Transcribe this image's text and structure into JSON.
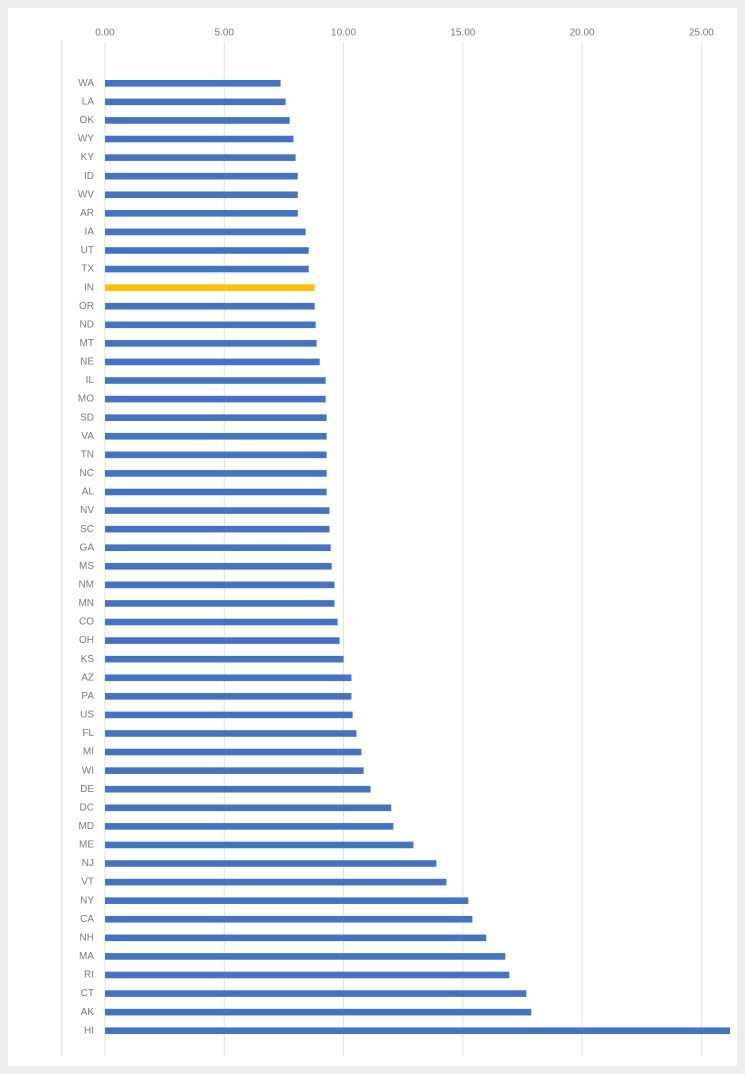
{
  "chart_data": {
    "type": "barh",
    "categories": [
      "WA",
      "LA",
      "OK",
      "WY",
      "KY",
      "ID",
      "WV",
      "AR",
      "IA",
      "UT",
      "TX",
      "IN",
      "OR",
      "ND",
      "MT",
      "NE",
      "IL",
      "MO",
      "SD",
      "VA",
      "TN",
      "NC",
      "AL",
      "NV",
      "SC",
      "GA",
      "MS",
      "NM",
      "MN",
      "CO",
      "OH",
      "KS",
      "AZ",
      "PA",
      "US",
      "FL",
      "MI",
      "WI",
      "DE",
      "DC",
      "MD",
      "ME",
      "NJ",
      "VT",
      "NY",
      "CA",
      "NH",
      "MA",
      "RI",
      "CT",
      "AK",
      "HI"
    ],
    "values": [
      7.36,
      7.57,
      7.74,
      7.9,
      7.99,
      8.08,
      8.08,
      8.08,
      8.41,
      8.54,
      8.54,
      8.79,
      8.79,
      8.83,
      8.87,
      9.0,
      9.25,
      9.25,
      9.29,
      9.29,
      9.29,
      9.29,
      9.29,
      9.41,
      9.41,
      9.46,
      9.5,
      9.62,
      9.62,
      9.75,
      9.83,
      10.0,
      10.33,
      10.33,
      10.38,
      10.54,
      10.75,
      10.84,
      11.13,
      12.0,
      12.09,
      12.93,
      13.89,
      14.31,
      15.23,
      15.4,
      15.98,
      16.78,
      16.95,
      17.66,
      17.87,
      26.2
    ],
    "colors": [
      "#4472c4",
      "#4472c4",
      "#4472c4",
      "#4472c4",
      "#4472c4",
      "#4472c4",
      "#4472c4",
      "#4472c4",
      "#4472c4",
      "#4472c4",
      "#4472c4",
      "#ffc000",
      "#4472c4",
      "#4472c4",
      "#4472c4",
      "#4472c4",
      "#4472c4",
      "#4472c4",
      "#4472c4",
      "#4472c4",
      "#4472c4",
      "#4472c4",
      "#4472c4",
      "#4472c4",
      "#4472c4",
      "#4472c4",
      "#4472c4",
      "#4472c4",
      "#4472c4",
      "#4472c4",
      "#4472c4",
      "#4472c4",
      "#4472c4",
      "#4472c4",
      "#4472c4",
      "#4472c4",
      "#4472c4",
      "#4472c4",
      "#4472c4",
      "#4472c4",
      "#4472c4",
      "#4472c4",
      "#4472c4",
      "#4472c4",
      "#4472c4",
      "#4472c4",
      "#4472c4",
      "#4472c4",
      "#4472c4",
      "#4472c4",
      "#4472c4",
      "#4472c4"
    ],
    "xlim": [
      0,
      26.2
    ],
    "xticks": [
      {
        "value": 0,
        "label": "0.00"
      },
      {
        "value": 5,
        "label": "5.00"
      },
      {
        "value": 10,
        "label": "10.00"
      },
      {
        "value": 15,
        "label": "15.00"
      },
      {
        "value": 20,
        "label": "20.00"
      },
      {
        "value": 25,
        "label": "25.00"
      }
    ],
    "grid": true
  }
}
